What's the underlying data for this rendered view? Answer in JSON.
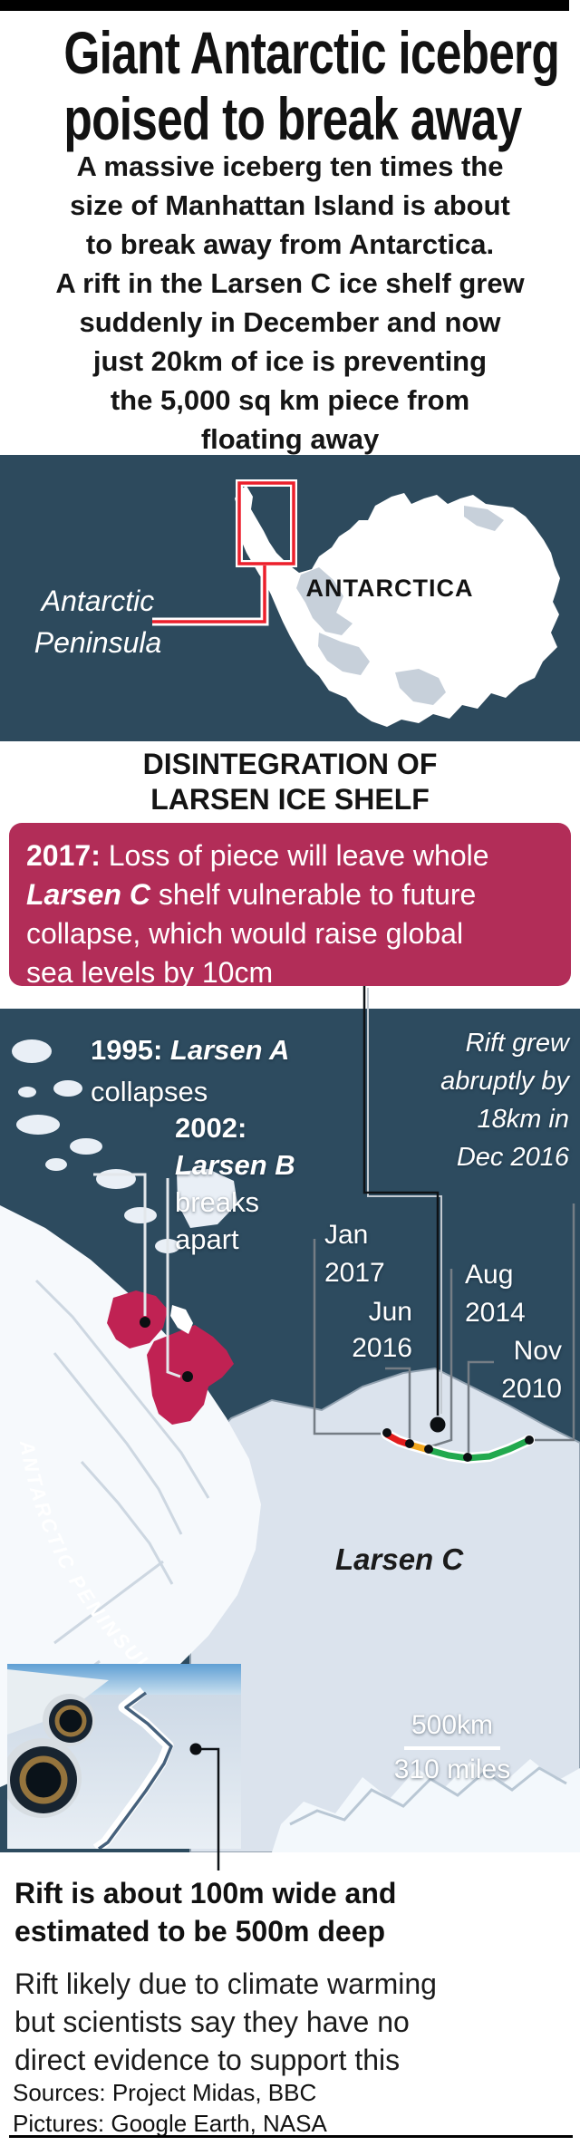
{
  "title": {
    "lines": [
      "Giant Antarctic iceberg",
      "poised to break away"
    ]
  },
  "intro": {
    "lines": [
      "A massive iceberg ten times the",
      "size of Manhattan Island is about",
      "to break away from Antarctica.",
      "A rift in the Larsen C ice shelf grew",
      "suddenly in December and now",
      "just 20km of ice is preventing",
      "the 5,000 sq km piece from",
      "floating away"
    ]
  },
  "locator_map": {
    "ocean_color": "#2d4a5d",
    "continent_label": "ANTARCTICA",
    "peninsula_label": {
      "lines": [
        "Antarctic",
        "Peninsula"
      ]
    },
    "highlight_box_color": "#ec1f2b"
  },
  "section_heading": {
    "lines": [
      "DISINTEGRATION OF",
      "LARSEN ICE SHELF"
    ]
  },
  "callout_2017": {
    "bg_color": "#b22d58",
    "lines": [
      [
        {
          "t": "2017: ",
          "b": true
        },
        {
          "t": "Loss of piece will leave whole"
        }
      ],
      [
        {
          "t": "Larsen C",
          "b": true,
          "i": true
        },
        {
          "t": " shelf vulnerable to future"
        }
      ],
      [
        {
          "t": "collapse, which would raise global"
        }
      ],
      [
        {
          "t": "sea levels by 10cm"
        }
      ]
    ]
  },
  "satellite_map": {
    "ocean_color": "#2d4b5f",
    "larsen_patch_color": "#c02253",
    "event_1995": {
      "lines": [
        [
          {
            "t": "1995: ",
            "b": true
          },
          {
            "t": "Larsen A",
            "b": true,
            "i": true
          }
        ],
        [
          {
            "t": "collapses"
          }
        ]
      ]
    },
    "event_2002": {
      "lines": [
        [
          {
            "t": "2002:",
            "b": true
          }
        ],
        [
          {
            "t": "Larsen B",
            "b": true,
            "i": true
          }
        ],
        [
          {
            "t": "breaks"
          }
        ],
        [
          {
            "t": "apart"
          }
        ]
      ]
    },
    "rift_note": {
      "lines": [
        "Rift grew",
        "abruptly by",
        "18km in",
        "Dec 2016"
      ]
    },
    "date_jan_2017": {
      "lines": [
        "Jan",
        "2017"
      ]
    },
    "date_jun_2016": {
      "lines": [
        "Jun",
        "2016"
      ]
    },
    "date_aug_2014": {
      "lines": [
        "Aug",
        "2014"
      ]
    },
    "date_nov_2010": {
      "lines": [
        "Nov",
        "2010"
      ]
    },
    "region_label": "Larsen C",
    "peninsula_curved_label": "ANTARCTIC PENINSULA",
    "scale": {
      "km": "500km",
      "miles": "310 miles"
    },
    "rift_segment_colors": {
      "jan_2017": "#e31d1d",
      "jun_2016": "#f2a71e",
      "nov_2010_aug_2014": "#22a94e"
    }
  },
  "photo_caption": {
    "lines": [
      "Rift is about 100m wide and",
      "estimated to be 500m deep"
    ]
  },
  "footnote": {
    "lines": [
      "Rift likely due to climate warming",
      "but scientists say they have no",
      "direct evidence to support this"
    ]
  },
  "credits": {
    "sources": "Sources: Project Midas, BBC",
    "pictures": "Pictures: Google Earth, NASA"
  }
}
